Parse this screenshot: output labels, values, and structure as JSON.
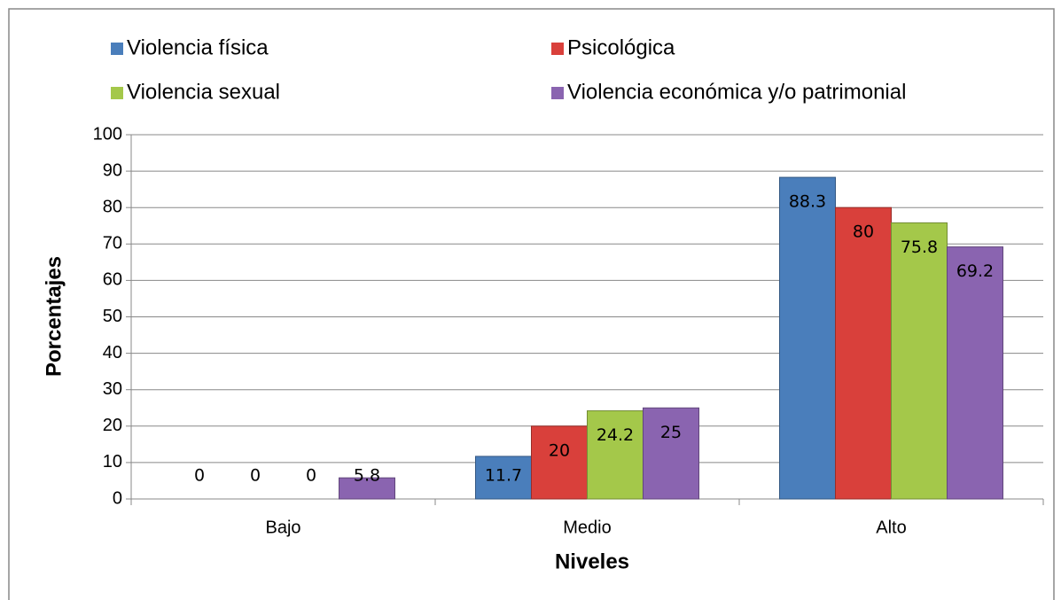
{
  "chart_data": {
    "type": "bar",
    "categories": [
      "Bajo",
      "Medio",
      "Alto"
    ],
    "series": [
      {
        "name": "Violencia física",
        "color": "#4a7ebb",
        "values": [
          0,
          11.7,
          88.3
        ]
      },
      {
        "name": "Psicológica",
        "color": "#d9403b",
        "values": [
          0,
          20,
          80
        ]
      },
      {
        "name": "Violencia sexual",
        "color": "#a4c84a",
        "values": [
          0,
          24.2,
          75.8
        ]
      },
      {
        "name": "Violencia económica y/o patrimonial",
        "color": "#8a64b0",
        "values": [
          5.8,
          25,
          69.2
        ]
      }
    ],
    "xlabel": "Niveles",
    "ylabel": "Porcentajes",
    "ylim": [
      0,
      100
    ],
    "yticks": [
      0,
      10,
      20,
      30,
      40,
      50,
      60,
      70,
      80,
      90,
      100
    ],
    "grid": true,
    "legend": "top"
  }
}
